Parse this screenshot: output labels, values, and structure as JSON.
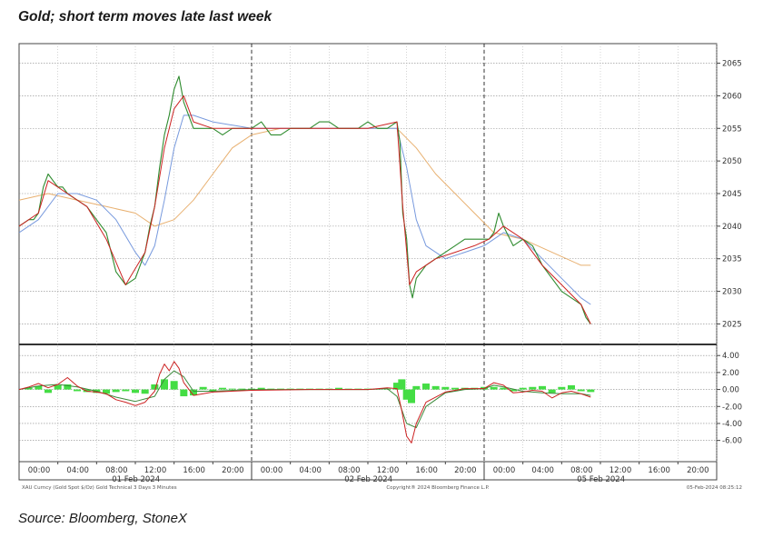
{
  "title": "Gold; short term moves late last week",
  "source": "Source: Bloomberg, StoneX",
  "footer": {
    "left": "XAU Curncy (Gold Spot  $/Oz) Gold Technical 3 Days 3 Minutes",
    "center": "Copyright® 2024 Bloomberg Finance L.P.",
    "right": "05-Feb-2024 08:25:12"
  },
  "chart_data": [
    {
      "type": "line",
      "panel": "price",
      "ylim": [
        2022,
        2068
      ],
      "yticks": [
        2025,
        2030,
        2035,
        2040,
        2045,
        2050,
        2055,
        2060,
        2065
      ],
      "xlabel": "",
      "ylabel": "",
      "grid": true,
      "x_range_hours": [
        0,
        72
      ],
      "x_tick_labels": [
        "00:00",
        "04:00",
        "08:00",
        "12:00",
        "16:00",
        "20:00",
        "00:00",
        "04:00",
        "08:00",
        "12:00",
        "16:00",
        "20:00",
        "00:00",
        "04:00",
        "08:00",
        "12:00",
        "16:00",
        "20:00"
      ],
      "date_labels": [
        {
          "at": 10,
          "text": "01 Feb 2024"
        },
        {
          "at": 34,
          "text": "02 Feb 2024"
        },
        {
          "at": 58,
          "text": "05 Feb 2024"
        }
      ],
      "session_breaks": [
        24,
        48
      ],
      "series": [
        {
          "color": "#2e8b2e",
          "kind": "price",
          "x": [
            0,
            1,
            1.5,
            2,
            2.5,
            3,
            3.5,
            4,
            4.5,
            5,
            6,
            7,
            8,
            9,
            10,
            11,
            12,
            13,
            13.5,
            14,
            14.5,
            15,
            15.5,
            16,
            16.5,
            17,
            17.5,
            18,
            19,
            20,
            21,
            22,
            23,
            24,
            25,
            26,
            27,
            28,
            29,
            30,
            31,
            32,
            33,
            34,
            35,
            36,
            37,
            38,
            39,
            39.3,
            39.6,
            40,
            40.3,
            40.6,
            41,
            42,
            43,
            44,
            45,
            46,
            47,
            48,
            48.5,
            49,
            49.5,
            50,
            51,
            52,
            53,
            54,
            55,
            56,
            57,
            58,
            58.5,
            59
          ],
          "y": [
            2040,
            2041,
            2041,
            2042,
            2046,
            2048,
            2047,
            2046,
            2046,
            2045,
            2044,
            2043,
            2041,
            2039,
            2033,
            2031,
            2032,
            2036,
            2040,
            2043,
            2049,
            2054,
            2057,
            2061,
            2063,
            2059,
            2057,
            2055,
            2055,
            2055,
            2054,
            2055,
            2055,
            2055,
            2056,
            2054,
            2054,
            2055,
            2055,
            2055,
            2056,
            2056,
            2055,
            2055,
            2055,
            2056,
            2055,
            2055,
            2056,
            2053,
            2042,
            2038,
            2031,
            2029,
            2032,
            2034,
            2035,
            2036,
            2037,
            2038,
            2038,
            2038,
            2038,
            2039,
            2042,
            2040,
            2037,
            2038,
            2037,
            2034,
            2032,
            2030,
            2029,
            2028,
            2026,
            2025
          ]
        },
        {
          "color": "#cc2222",
          "kind": "fast MA",
          "x": [
            0,
            2,
            3,
            5,
            7,
            9,
            11,
            13,
            14,
            15,
            16,
            17,
            18,
            20,
            24,
            30,
            36,
            39,
            39.6,
            40.3,
            41,
            43,
            45,
            47,
            48.5,
            50,
            52,
            54,
            56,
            58,
            59
          ],
          "y": [
            2040,
            2042,
            2047,
            2045,
            2043,
            2038,
            2031,
            2036,
            2043,
            2052,
            2058,
            2060,
            2056,
            2055,
            2055,
            2055,
            2055,
            2056,
            2043,
            2031,
            2033,
            2035,
            2036,
            2037,
            2038,
            2040,
            2038,
            2034,
            2031,
            2028,
            2025
          ]
        },
        {
          "color": "#7799dd",
          "kind": "medium MA",
          "x": [
            0,
            2,
            4,
            6,
            8,
            10,
            12,
            13,
            14,
            15,
            16,
            17,
            18,
            20,
            24,
            30,
            36,
            39,
            40,
            41,
            42,
            44,
            46,
            48,
            49,
            50,
            52,
            54,
            56,
            58,
            59
          ],
          "y": [
            2039,
            2041,
            2045,
            2045,
            2044,
            2041,
            2036,
            2034,
            2037,
            2044,
            2052,
            2057,
            2057,
            2056,
            2055,
            2055,
            2055,
            2055,
            2049,
            2041,
            2037,
            2035,
            2036,
            2037,
            2038,
            2039,
            2038,
            2035,
            2032,
            2029,
            2028
          ]
        },
        {
          "color": "#e8b070",
          "kind": "slow MA",
          "x": [
            0,
            3,
            6,
            9,
            12,
            14,
            16,
            18,
            20,
            22,
            24,
            27,
            30,
            33,
            36,
            39,
            41,
            43,
            45,
            47,
            49,
            52,
            55,
            58,
            59
          ],
          "y": [
            2044,
            2045,
            2044,
            2043,
            2042,
            2040,
            2041,
            2044,
            2048,
            2052,
            2054,
            2055,
            2055,
            2055,
            2055,
            2055,
            2052,
            2048,
            2045,
            2042,
            2039,
            2038,
            2036,
            2034,
            2034
          ]
        }
      ]
    },
    {
      "type": "line",
      "panel": "oscillator",
      "ylim": [
        -8.5,
        5.2
      ],
      "yticks": [
        4.0,
        2.0,
        0.0,
        -2.0,
        -4.0,
        -6.0
      ],
      "ytick_labels": [
        "4.00",
        "2.00",
        "0.00",
        "-2.00",
        "-4.00",
        "-6.00"
      ],
      "grid": true,
      "series": [
        {
          "color": "#cc2222",
          "kind": "oscillator line",
          "x": [
            0,
            1,
            2,
            3,
            4,
            5,
            6,
            7,
            8,
            9,
            10,
            11,
            12,
            13,
            14,
            14.5,
            15,
            15.5,
            16,
            16.5,
            17,
            18,
            20,
            24,
            30,
            36,
            38,
            39,
            39.5,
            40,
            40.5,
            41,
            42,
            44,
            46,
            48,
            49,
            50,
            51,
            52,
            53,
            54,
            55,
            56,
            57,
            58,
            59
          ],
          "y": [
            0,
            0.3,
            0.7,
            0.2,
            0.6,
            1.4,
            0.4,
            -0.2,
            -0.3,
            -0.5,
            -1.2,
            -1.5,
            -1.9,
            -1.5,
            -0.2,
            1.8,
            3.0,
            2.2,
            3.3,
            2.5,
            0.8,
            -0.7,
            -0.3,
            -0.1,
            0,
            0,
            0.2,
            0.1,
            -2.5,
            -5.5,
            -6.3,
            -4.0,
            -1.5,
            -0.3,
            0.1,
            0.1,
            0.8,
            0.5,
            -0.4,
            -0.3,
            -0.1,
            -0.2,
            -1.0,
            -0.4,
            -0.2,
            -0.5,
            -0.9
          ]
        },
        {
          "color": "#3b8a3b",
          "kind": "signal line",
          "x": [
            0,
            2,
            4,
            6,
            8,
            10,
            12,
            14,
            15,
            16,
            17,
            18,
            20,
            24,
            30,
            36,
            38,
            39,
            40,
            41,
            42,
            44,
            46,
            48,
            49,
            50,
            52,
            54,
            56,
            58,
            59
          ],
          "y": [
            0,
            0.4,
            0.6,
            0.3,
            -0.2,
            -0.9,
            -1.4,
            -0.8,
            1.2,
            2.2,
            1.5,
            -0.2,
            -0.2,
            0,
            0,
            0,
            0.1,
            -0.8,
            -4.0,
            -4.5,
            -2.0,
            -0.4,
            0,
            0.1,
            0.5,
            0.3,
            -0.2,
            -0.4,
            -0.5,
            -0.5,
            -0.7
          ]
        },
        {
          "color": "#44dd44",
          "kind": "histogram",
          "x": [
            1,
            2,
            3,
            4,
            5,
            6,
            7,
            8,
            9,
            10,
            11,
            12,
            13,
            14,
            15,
            16,
            17,
            18,
            19,
            20,
            21,
            22,
            23,
            24,
            25,
            26,
            27,
            28,
            29,
            30,
            31,
            32,
            33,
            34,
            35,
            36,
            37,
            38,
            39,
            39.5,
            40,
            40.5,
            41,
            42,
            43,
            44,
            45,
            46,
            47,
            48,
            49,
            50,
            51,
            52,
            53,
            54,
            55,
            56,
            57,
            58,
            59
          ],
          "y": [
            0.2,
            0.4,
            -0.4,
            0.5,
            0.6,
            -0.2,
            -0.3,
            -0.4,
            -0.5,
            -0.3,
            -0.2,
            -0.4,
            -0.5,
            0.6,
            1.2,
            1.0,
            -0.8,
            -0.7,
            0.3,
            -0.2,
            0.2,
            0.1,
            0.1,
            0.1,
            0.2,
            0.1,
            0.1,
            0.1,
            0.1,
            0.1,
            0.1,
            0.1,
            0.2,
            0.1,
            0.1,
            0.1,
            0.1,
            0.1,
            0.8,
            1.2,
            -1.2,
            -1.6,
            0.4,
            0.7,
            0.4,
            0.3,
            0.2,
            0.2,
            0.2,
            0.3,
            0.3,
            0.2,
            -0.2,
            0.2,
            0.3,
            0.4,
            -0.4,
            0.3,
            0.5,
            -0.2,
            -0.3
          ]
        }
      ]
    }
  ]
}
